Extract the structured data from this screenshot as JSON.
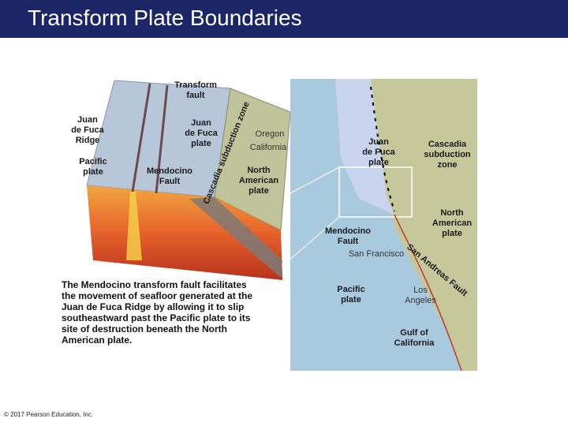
{
  "header": {
    "title": "Transform Plate Boundaries"
  },
  "figure": {
    "block_labels": [
      [
        "Transform",
        "fault"
      ],
      [
        "Juan",
        "de Fuca",
        "Ridge"
      ],
      [
        "Juan",
        "de Fuca",
        "plate"
      ],
      [
        "Cascadia subduction zone"
      ],
      [
        "Oregon"
      ],
      [
        "California"
      ],
      [
        "Pacific",
        "plate"
      ],
      [
        "Mendocino",
        "Fault"
      ],
      [
        "North",
        "American",
        "plate"
      ]
    ],
    "map_labels": [
      [
        "Juan",
        "de Fuca",
        "plate"
      ],
      [
        "Cascadia",
        "subduction",
        "zone"
      ],
      [
        "North",
        "American",
        "plate"
      ],
      [
        "Mendocino",
        "Fault"
      ],
      [
        "San Francisco"
      ],
      [
        "San Andreas Fault"
      ],
      [
        "Pacific",
        "plate"
      ],
      [
        "Los",
        "Angeles"
      ],
      [
        "Gulf of",
        "California"
      ]
    ],
    "caption": [
      "The Mendocino transform fault facilitates",
      "the movement of seafloor generated at the",
      "Juan de Fuca Ridge by allowing it to slip",
      "southeastward past the Pacific plate to its",
      "site of destruction beneath the North",
      "American plate."
    ]
  },
  "footer": {
    "copyright": "© 2017 Pearson Education, Inc."
  }
}
